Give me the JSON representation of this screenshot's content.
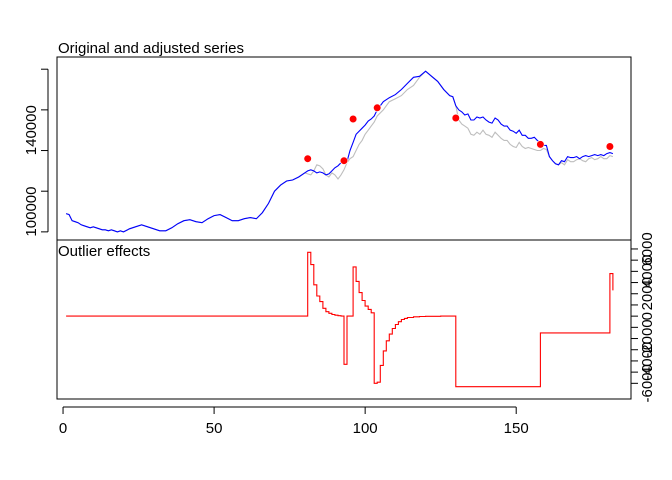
{
  "chart_data": [
    {
      "type": "line",
      "title": "Original and adjusted series",
      "xlim": [
        -2,
        188
      ],
      "ylim": [
        86000,
        176000
      ],
      "yticks": [
        100000,
        140000
      ],
      "ytick_labels": [
        "100000",
        "140000"
      ],
      "y_axis_side": "left",
      "series": [
        {
          "color": "#bebebe",
          "x": [
            1,
            2,
            3,
            4,
            5,
            6,
            7,
            8,
            9,
            10,
            11,
            12,
            13,
            14,
            15,
            16,
            17,
            18,
            19,
            20,
            22,
            24,
            26,
            28,
            30,
            32,
            34,
            36,
            38,
            40,
            42,
            44,
            46,
            48,
            50,
            52,
            54,
            56,
            58,
            60,
            62,
            64,
            66,
            68,
            70,
            72,
            74,
            76,
            78,
            80,
            81,
            82,
            83,
            84,
            85,
            86,
            87,
            88,
            89,
            90,
            91,
            92,
            93,
            94,
            95,
            96,
            97,
            98,
            99,
            100,
            101,
            102,
            103,
            104,
            106,
            108,
            110,
            112,
            114,
            116,
            118,
            120,
            122,
            124,
            126,
            128,
            129,
            130,
            131,
            132,
            133,
            134,
            135,
            136,
            137,
            138,
            139,
            140,
            141,
            142,
            143,
            144,
            145,
            146,
            147,
            148,
            149,
            150,
            151,
            152,
            153,
            154,
            155,
            156,
            157,
            158,
            159,
            160,
            161,
            162,
            163,
            164,
            165,
            166,
            167,
            168,
            169,
            170,
            171,
            172,
            173,
            174,
            175,
            176,
            177,
            178,
            179,
            180,
            181,
            182
          ],
          "y": [
            99000,
            98500,
            95500,
            95000,
            94500,
            93500,
            93000,
            92500,
            92000,
            92500,
            92000,
            91500,
            91000,
            91000,
            90500,
            91000,
            90500,
            90000,
            90500,
            90000,
            91500,
            92500,
            93500,
            92500,
            91500,
            90500,
            90500,
            92000,
            94000,
            95500,
            96000,
            95000,
            94500,
            96500,
            98000,
            98500,
            97000,
            95500,
            95500,
            96500,
            97000,
            96500,
            99500,
            104000,
            110000,
            113000,
            115000,
            115500,
            117000,
            119000,
            118500,
            118000,
            120000,
            123000,
            122500,
            121000,
            118000,
            117000,
            119000,
            118000,
            116000,
            118000,
            120500,
            124000,
            126000,
            127000,
            130000,
            133000,
            135000,
            138000,
            140000,
            142000,
            144000,
            147000,
            150000,
            154000,
            155500,
            157000,
            160000,
            162000,
            166000,
            169000,
            166500,
            164000,
            160000,
            157000,
            156500,
            152000,
            145000,
            143000,
            142000,
            141000,
            138000,
            137500,
            139000,
            138000,
            140000,
            138000,
            137500,
            136500,
            139000,
            137500,
            136000,
            135000,
            135000,
            133000,
            132000,
            131500,
            134000,
            132000,
            131000,
            131500,
            131000,
            130500,
            130000,
            130000,
            131000,
            130500,
            127000,
            125000,
            123500,
            123000,
            124000,
            123000,
            125500,
            124500,
            124500,
            125500,
            126000,
            125000,
            124500,
            126000,
            126500,
            125500,
            126000,
            127000,
            126000,
            126000,
            127500,
            127000
          ]
        },
        {
          "color": "#0000ff",
          "x": [
            1,
            2,
            3,
            4,
            5,
            6,
            7,
            8,
            9,
            10,
            11,
            12,
            13,
            14,
            15,
            16,
            17,
            18,
            19,
            20,
            22,
            24,
            26,
            28,
            30,
            32,
            34,
            36,
            38,
            40,
            42,
            44,
            46,
            48,
            50,
            52,
            54,
            56,
            58,
            60,
            62,
            64,
            66,
            68,
            70,
            72,
            74,
            76,
            78,
            80,
            81,
            82,
            83,
            84,
            85,
            86,
            87,
            88,
            89,
            90,
            91,
            92,
            93,
            94,
            95,
            96,
            97,
            98,
            99,
            100,
            101,
            102,
            103,
            104,
            106,
            108,
            110,
            112,
            114,
            116,
            118,
            120,
            122,
            124,
            126,
            128,
            129,
            130,
            131,
            132,
            133,
            134,
            135,
            136,
            137,
            138,
            139,
            140,
            141,
            142,
            143,
            144,
            145,
            146,
            147,
            148,
            149,
            150,
            151,
            152,
            153,
            154,
            155,
            156,
            157,
            158,
            159,
            160,
            161,
            162,
            163,
            164,
            165,
            166,
            167,
            168,
            169,
            170,
            171,
            172,
            173,
            174,
            175,
            176,
            177,
            178,
            179,
            180,
            181,
            182
          ],
          "y": [
            99000,
            98500,
            95500,
            95000,
            94500,
            93500,
            93000,
            92500,
            92000,
            92500,
            92000,
            91500,
            91000,
            91000,
            90500,
            91000,
            90500,
            90000,
            90500,
            90000,
            91500,
            92500,
            93500,
            92500,
            91500,
            90500,
            90500,
            92000,
            94000,
            95500,
            96000,
            95000,
            94500,
            96500,
            98000,
            98500,
            97000,
            95500,
            95500,
            96500,
            97000,
            96500,
            99500,
            104000,
            110000,
            113000,
            115000,
            115500,
            117000,
            119000,
            120000,
            120500,
            120000,
            119000,
            119500,
            119000,
            118000,
            118500,
            120000,
            121500,
            122500,
            124000,
            124500,
            124500,
            130000,
            134000,
            138000,
            139500,
            141000,
            142500,
            144500,
            145500,
            147000,
            150000,
            154000,
            156000,
            157500,
            160000,
            163000,
            166000,
            166500,
            169000,
            166500,
            164000,
            160000,
            157000,
            156500,
            152000,
            150000,
            149000,
            147500,
            148000,
            145000,
            145000,
            146500,
            146000,
            146500,
            145000,
            144000,
            143500,
            146000,
            145000,
            143000,
            142000,
            142000,
            140000,
            139500,
            138500,
            140000,
            137500,
            137500,
            136000,
            136000,
            136500,
            135000,
            134000,
            132500,
            132500,
            127000,
            125000,
            123500,
            123000,
            125000,
            124500,
            127000,
            126500,
            126500,
            127000,
            126000,
            127000,
            127500,
            127000,
            127500,
            128000,
            127500,
            128000,
            127500,
            128500,
            129000,
            128500
          ]
        }
      ],
      "points": {
        "color": "#ff0000",
        "x": [
          81,
          93,
          96,
          104,
          130,
          158,
          181
        ],
        "y": [
          126000,
          125000,
          145500,
          151000,
          146000,
          133000,
          132000
        ]
      }
    },
    {
      "type": "line",
      "title": "Outlier effects",
      "xlim": [
        -2,
        188
      ],
      "ylim": [
        -7400,
        6800
      ],
      "yticks": [
        -6000,
        -4000,
        -2000,
        0,
        2000,
        4000,
        6000
      ],
      "ytick_labels": [
        "-6000",
        "-4000",
        "-2000",
        "0",
        "2000",
        "4000",
        "6000"
      ],
      "y_axis_side": "right",
      "xticks": [
        0,
        50,
        100,
        150
      ],
      "xtick_labels": [
        "0",
        "50",
        "100",
        "150"
      ],
      "series": [
        {
          "color": "#ff0000",
          "step": true,
          "x": [
            1,
            81,
            82,
            83,
            84,
            85,
            86,
            87,
            88,
            89,
            90,
            91,
            92,
            93,
            94,
            95,
            96,
            97,
            98,
            99,
            100,
            101,
            102,
            103,
            104,
            105,
            106,
            107,
            108,
            109,
            110,
            111,
            112,
            113,
            114,
            116,
            118,
            120,
            125,
            129,
            130,
            131,
            158,
            159,
            181,
            182
          ],
          "y": [
            0,
            5700,
            4600,
            2800,
            1800,
            1300,
            700,
            400,
            250,
            150,
            80,
            40,
            0,
            -4300,
            0,
            0,
            4400,
            3100,
            2100,
            1400,
            900,
            600,
            300,
            -6000,
            -5900,
            -4400,
            -3100,
            -2200,
            -1600,
            -1100,
            -750,
            -500,
            -300,
            -200,
            -120,
            -60,
            -30,
            -15,
            0,
            0,
            -6300,
            -6300,
            -1500,
            -1500,
            3800,
            2300
          ]
        }
      ]
    }
  ]
}
